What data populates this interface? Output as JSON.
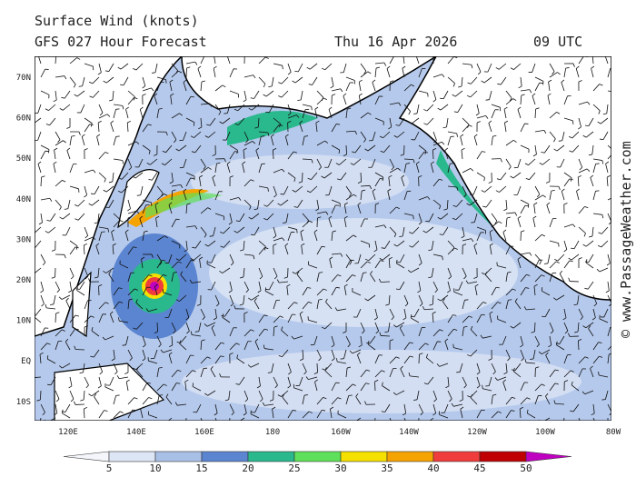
{
  "header": {
    "title": "Surface Wind (knots)",
    "model": "GFS 027 Hour Forecast",
    "date": "Thu 16 Apr 2026",
    "time": "09 UTC"
  },
  "map": {
    "lat_labels": [
      "70N",
      "60N",
      "50N",
      "40N",
      "30N",
      "20N",
      "10N",
      "EQ",
      "10S"
    ],
    "lon_labels": [
      "120E",
      "140E",
      "160E",
      "180",
      "160W",
      "140W",
      "120W",
      "100W",
      "80W"
    ]
  },
  "colorbar": {
    "labels": [
      5,
      10,
      15,
      20,
      25,
      30,
      35,
      40,
      45,
      50
    ],
    "colors": [
      "#f4f6fb",
      "#dde6f5",
      "#a9c0e6",
      "#5b85d0",
      "#2ab88d",
      "#5fe05a",
      "#f5e000",
      "#f5a300",
      "#f03c3c",
      "#c00000",
      "#c000c0"
    ]
  },
  "watermark": "© www.PassageWeather.com"
}
